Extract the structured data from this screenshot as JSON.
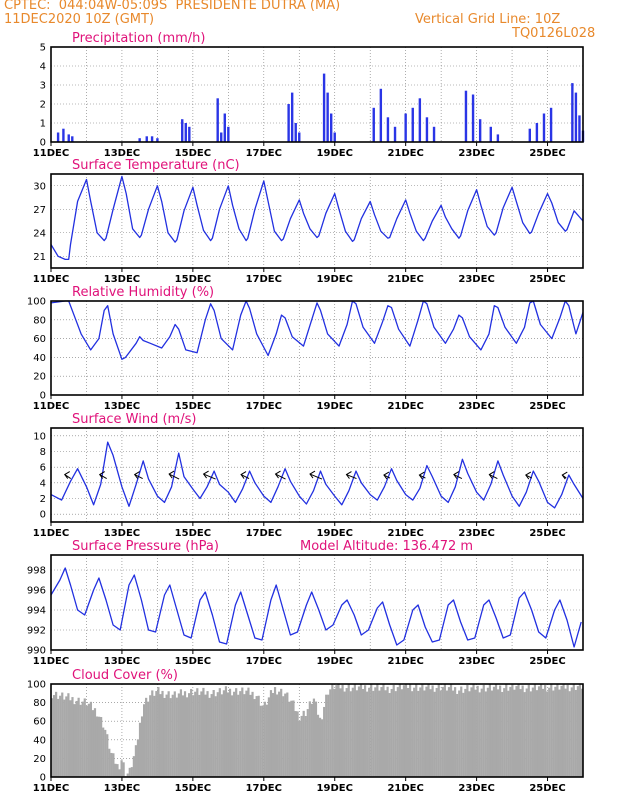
{
  "header": {
    "line1": "CPTEC:  044:04W-05:09S  PRESIDENTE DUTRA (MA)",
    "line2_left": "11DEC2020 10Z (GMT)",
    "line2_right": "Vertical Grid Line: 10Z",
    "line3_right": "TQ0126L028"
  },
  "x_ticks": [
    "11DEC",
    "13DEC",
    "15DEC",
    "17DEC",
    "19DEC",
    "21DEC",
    "23DEC",
    "25DEC"
  ],
  "x_tick_days": [
    0,
    2,
    4,
    6,
    8,
    10,
    12,
    14
  ],
  "x_range_days": [
    0,
    15.0
  ],
  "colors": {
    "line": "#2230e0",
    "bar": "#2a35e6",
    "cloud": "#a9a9a9",
    "grid": "#777777",
    "title": "#e0127a",
    "header": "#e8892c"
  },
  "panels": [
    {
      "key": "precip",
      "title": "Precipitation (mm/h)",
      "type": "bar",
      "ylim": [
        0,
        5
      ],
      "yticks": [
        0,
        1,
        2,
        3,
        4,
        5
      ]
    },
    {
      "key": "temp",
      "title": "Surface Temperature (nC)",
      "type": "line",
      "ylim": [
        19.5,
        31.5
      ],
      "yticks": [
        21,
        24,
        27,
        30
      ]
    },
    {
      "key": "rh",
      "title": "Relative Humidity (%)",
      "type": "line",
      "ylim": [
        0,
        100
      ],
      "yticks": [
        0,
        20,
        40,
        60,
        80,
        100
      ]
    },
    {
      "key": "wind",
      "title": "Surface Wind (m/s)",
      "type": "line",
      "ylim": [
        -1,
        11
      ],
      "yticks": [
        0,
        2,
        4,
        6,
        8,
        10
      ]
    },
    {
      "key": "pres",
      "title": "Surface Pressure (hPa)",
      "subtitle": "Model Altitude: 136.472 m",
      "type": "line",
      "ylim": [
        990,
        999.5
      ],
      "yticks": [
        990,
        992,
        994,
        996,
        998
      ]
    },
    {
      "key": "cloud",
      "title": "Cloud Cover (%)",
      "type": "area",
      "ylim": [
        0,
        100
      ],
      "yticks": [
        0,
        20,
        40,
        60,
        80,
        100
      ]
    }
  ],
  "chart_data": [
    {
      "type": "bar",
      "title": "Precipitation (mm/h)",
      "ylim": [
        0,
        5
      ],
      "x": [
        0.2,
        0.35,
        0.5,
        0.6,
        2.5,
        2.7,
        2.85,
        3.0,
        3.7,
        3.8,
        3.9,
        4.7,
        4.8,
        4.9,
        5.0,
        6.7,
        6.8,
        6.9,
        7.0,
        7.7,
        7.8,
        7.9,
        8.0,
        9.1,
        9.3,
        9.5,
        9.7,
        10.0,
        10.2,
        10.4,
        10.6,
        10.8,
        11.7,
        11.9,
        12.1,
        12.4,
        12.6,
        13.5,
        13.7,
        13.9,
        14.1,
        14.7,
        14.8,
        14.9,
        15.0
      ],
      "values": [
        0.5,
        0.7,
        0.4,
        0.3,
        0.2,
        0.3,
        0.3,
        0.2,
        1.2,
        1.0,
        0.8,
        2.3,
        0.5,
        1.5,
        0.8,
        2.0,
        2.6,
        1.0,
        0.5,
        3.6,
        2.6,
        1.5,
        0.5,
        1.8,
        2.8,
        1.3,
        0.8,
        1.5,
        1.8,
        2.3,
        1.3,
        0.8,
        2.7,
        2.5,
        1.2,
        0.8,
        0.4,
        0.7,
        1.0,
        1.5,
        1.8,
        3.1,
        2.6,
        1.4,
        0.6
      ]
    },
    {
      "type": "line",
      "title": "Surface Temperature (nC)",
      "ylim": [
        19.5,
        31.5
      ],
      "x": [
        0.0,
        0.2,
        0.4,
        0.5,
        0.55,
        0.75,
        1.0,
        1.12,
        1.3,
        1.5,
        1.55,
        1.75,
        2.0,
        2.12,
        2.3,
        2.5,
        2.55,
        2.75,
        3.0,
        3.12,
        3.3,
        3.5,
        3.55,
        3.75,
        4.0,
        4.12,
        4.3,
        4.5,
        4.55,
        4.75,
        5.0,
        5.12,
        5.3,
        5.5,
        5.55,
        5.75,
        6.0,
        6.12,
        6.3,
        6.5,
        6.55,
        6.75,
        7.0,
        7.12,
        7.3,
        7.5,
        7.55,
        7.75,
        8.0,
        8.12,
        8.3,
        8.5,
        8.55,
        8.75,
        9.0,
        9.12,
        9.3,
        9.5,
        9.55,
        9.75,
        10.0,
        10.12,
        10.3,
        10.5,
        10.55,
        10.75,
        11.0,
        11.12,
        11.3,
        11.5,
        11.55,
        11.75,
        12.0,
        12.12,
        12.3,
        12.5,
        12.55,
        12.75,
        13.0,
        13.12,
        13.3,
        13.5,
        13.55,
        13.75,
        14.0,
        14.12,
        14.3,
        14.5,
        14.55,
        14.75,
        15.0
      ],
      "values": [
        22.5,
        21.0,
        20.6,
        20.6,
        22.5,
        28.0,
        30.8,
        28.0,
        24.0,
        23.0,
        23.3,
        27.0,
        31.2,
        29.0,
        24.5,
        23.4,
        23.7,
        27.0,
        30.0,
        28.0,
        24.0,
        22.8,
        23.1,
        26.8,
        29.8,
        27.5,
        24.3,
        23.0,
        23.3,
        27.0,
        30.0,
        27.5,
        24.5,
        23.0,
        23.3,
        27.0,
        30.6,
        28.0,
        24.2,
        23.0,
        23.2,
        25.8,
        28.2,
        26.5,
        24.5,
        23.4,
        23.6,
        26.5,
        29.0,
        27.0,
        24.2,
        22.9,
        23.1,
        25.8,
        28.0,
        26.3,
        24.2,
        23.3,
        23.4,
        25.8,
        28.2,
        26.5,
        24.2,
        23.0,
        23.3,
        25.5,
        27.5,
        26.0,
        24.5,
        23.3,
        23.6,
        26.8,
        29.5,
        27.5,
        24.8,
        23.7,
        24.0,
        27.2,
        29.8,
        28.0,
        25.3,
        23.9,
        24.1,
        26.5,
        29.0,
        27.8,
        25.3,
        24.2,
        24.4,
        26.8,
        25.5
      ]
    },
    {
      "type": "line",
      "title": "Relative Humidity (%)",
      "ylim": [
        0,
        100
      ],
      "x": [
        0.0,
        0.4,
        0.5,
        0.7,
        0.85,
        1.12,
        1.35,
        1.5,
        1.6,
        1.75,
        2.0,
        2.1,
        2.4,
        2.5,
        2.6,
        2.8,
        3.12,
        3.35,
        3.5,
        3.6,
        3.8,
        4.12,
        4.35,
        4.5,
        4.6,
        4.8,
        5.12,
        5.35,
        5.5,
        5.6,
        5.8,
        6.12,
        6.35,
        6.5,
        6.6,
        6.8,
        7.12,
        7.35,
        7.5,
        7.6,
        7.8,
        8.12,
        8.35,
        8.5,
        8.6,
        8.8,
        9.12,
        9.35,
        9.5,
        9.6,
        9.8,
        10.12,
        10.35,
        10.5,
        10.6,
        10.8,
        11.12,
        11.35,
        11.5,
        11.6,
        11.8,
        12.12,
        12.35,
        12.5,
        12.6,
        12.8,
        13.12,
        13.35,
        13.5,
        13.6,
        13.8,
        14.12,
        14.35,
        14.5,
        14.6,
        14.8,
        15.0
      ],
      "values": [
        98,
        100,
        100,
        80,
        65,
        48,
        60,
        90,
        95,
        65,
        38,
        40,
        55,
        62,
        58,
        55,
        50,
        62,
        75,
        70,
        48,
        45,
        80,
        97,
        90,
        60,
        48,
        85,
        100,
        92,
        65,
        42,
        65,
        85,
        82,
        62,
        52,
        80,
        98,
        90,
        65,
        52,
        75,
        100,
        97,
        72,
        55,
        78,
        95,
        93,
        70,
        52,
        80,
        100,
        97,
        72,
        55,
        70,
        85,
        82,
        62,
        48,
        65,
        95,
        93,
        72,
        55,
        72,
        98,
        100,
        75,
        60,
        82,
        100,
        95,
        65,
        88
      ]
    },
    {
      "type": "line",
      "title": "Surface Wind (m/s)",
      "ylim": [
        -1,
        11
      ],
      "x": [
        0.0,
        0.3,
        0.55,
        0.75,
        1.0,
        1.2,
        1.4,
        1.6,
        1.75,
        2.0,
        2.2,
        2.4,
        2.6,
        2.75,
        3.0,
        3.2,
        3.4,
        3.6,
        3.75,
        4.0,
        4.2,
        4.4,
        4.6,
        4.75,
        5.0,
        5.2,
        5.4,
        5.6,
        5.75,
        6.0,
        6.2,
        6.4,
        6.6,
        6.75,
        7.0,
        7.2,
        7.4,
        7.6,
        7.75,
        8.0,
        8.2,
        8.4,
        8.6,
        8.75,
        9.0,
        9.2,
        9.4,
        9.6,
        9.75,
        10.0,
        10.2,
        10.4,
        10.6,
        10.75,
        11.0,
        11.2,
        11.4,
        11.6,
        11.75,
        12.0,
        12.2,
        12.4,
        12.6,
        12.75,
        13.0,
        13.2,
        13.4,
        13.6,
        13.75,
        14.0,
        14.2,
        14.4,
        14.6,
        14.75,
        15.0
      ],
      "values": [
        2.5,
        1.8,
        4.2,
        5.8,
        3.5,
        1.2,
        3.8,
        9.2,
        7.5,
        3.5,
        1.0,
        3.8,
        6.8,
        4.5,
        2.3,
        1.5,
        3.5,
        7.8,
        4.8,
        3.2,
        2.0,
        3.5,
        5.5,
        3.8,
        2.8,
        1.5,
        3.2,
        5.5,
        4.0,
        2.3,
        1.5,
        3.5,
        5.8,
        4.2,
        2.3,
        1.3,
        3.0,
        5.5,
        3.8,
        2.3,
        1.2,
        3.0,
        5.5,
        4.0,
        2.5,
        1.8,
        3.5,
        5.8,
        4.3,
        2.5,
        1.8,
        3.3,
        6.2,
        4.8,
        2.3,
        1.5,
        3.5,
        7.0,
        5.2,
        2.8,
        1.8,
        3.8,
        6.8,
        5.0,
        2.3,
        1.0,
        2.8,
        5.5,
        4.2,
        1.5,
        0.8,
        2.5,
        5.0,
        3.8,
        2.0
      ],
      "arrows_x": [
        0.5,
        1.5,
        2.5,
        3.5,
        4.5,
        5.5,
        6.5,
        7.5,
        8.5,
        9.5,
        10.5,
        11.5,
        12.5,
        13.5,
        14.5
      ],
      "arrows_dx": [
        -8,
        -9,
        -10,
        -12,
        -14,
        -10,
        -12,
        -14,
        -12,
        -8,
        -8,
        -10,
        -10,
        -8,
        -6
      ],
      "arrows_dy": [
        4,
        4,
        4,
        5,
        5,
        4,
        5,
        5,
        4,
        3,
        3,
        4,
        4,
        3,
        3
      ]
    },
    {
      "type": "line",
      "title": "Surface Pressure (hPa)",
      "subtitle": "Model Altitude: 136.472 m",
      "ylim": [
        990,
        999.5
      ],
      "x": [
        0.0,
        0.25,
        0.4,
        0.55,
        0.75,
        0.95,
        1.2,
        1.35,
        1.55,
        1.75,
        1.95,
        2.2,
        2.35,
        2.55,
        2.75,
        2.95,
        3.2,
        3.35,
        3.55,
        3.75,
        3.95,
        4.2,
        4.35,
        4.55,
        4.75,
        4.95,
        5.2,
        5.35,
        5.55,
        5.75,
        5.95,
        6.2,
        6.35,
        6.55,
        6.75,
        6.95,
        7.2,
        7.35,
        7.55,
        7.75,
        7.95,
        8.2,
        8.35,
        8.55,
        8.75,
        8.95,
        9.2,
        9.35,
        9.55,
        9.75,
        9.95,
        10.2,
        10.35,
        10.55,
        10.75,
        10.95,
        11.2,
        11.35,
        11.55,
        11.75,
        11.95,
        12.2,
        12.35,
        12.55,
        12.75,
        12.95,
        13.2,
        13.35,
        13.55,
        13.75,
        13.95,
        14.2,
        14.35,
        14.55,
        14.75,
        14.95
      ],
      "values": [
        995.5,
        997.0,
        998.2,
        996.5,
        994.0,
        993.5,
        996.0,
        997.2,
        995.0,
        992.5,
        992.0,
        996.5,
        997.5,
        995.0,
        992.0,
        991.8,
        995.5,
        996.5,
        994.0,
        991.5,
        991.2,
        995.0,
        995.8,
        993.5,
        990.8,
        990.6,
        994.5,
        995.8,
        993.5,
        991.2,
        991.0,
        995.0,
        996.5,
        994.0,
        991.5,
        991.8,
        994.5,
        995.8,
        994.0,
        992.0,
        992.5,
        994.5,
        995.0,
        993.5,
        991.5,
        992.0,
        994.2,
        994.8,
        992.5,
        990.5,
        991.0,
        994.0,
        994.5,
        992.3,
        990.8,
        991.0,
        994.5,
        995.0,
        992.8,
        991.0,
        991.2,
        994.5,
        995.0,
        993.2,
        991.2,
        991.5,
        995.2,
        995.8,
        994.0,
        991.8,
        991.2,
        994.0,
        995.0,
        993.0,
        990.3,
        992.8
      ]
    },
    {
      "type": "area",
      "title": "Cloud Cover (%)",
      "ylim": [
        0,
        100
      ],
      "x": [
        0.0,
        0.5,
        1.0,
        1.3,
        1.5,
        1.7,
        1.9,
        2.0,
        2.1,
        2.2,
        2.4,
        2.6,
        2.8,
        3.0,
        3.2,
        3.5,
        4.0,
        4.5,
        5.0,
        5.5,
        5.8,
        6.0,
        6.3,
        6.6,
        6.8,
        7.0,
        7.2,
        7.4,
        7.6,
        7.8,
        8.0,
        8.5,
        9.0,
        9.5,
        10.0,
        10.5,
        11.0,
        11.5,
        12.0,
        12.5,
        13.0,
        13.5,
        14.0,
        14.5,
        15.0
      ],
      "values": [
        90,
        85,
        80,
        70,
        55,
        25,
        10,
        20,
        5,
        3,
        30,
        78,
        88,
        92,
        90,
        88,
        92,
        90,
        93,
        92,
        88,
        75,
        95,
        90,
        80,
        65,
        70,
        85,
        60,
        92,
        98,
        96,
        97,
        95,
        98,
        96,
        97,
        94,
        96,
        96,
        97,
        96,
        97,
        97,
        98
      ]
    }
  ]
}
